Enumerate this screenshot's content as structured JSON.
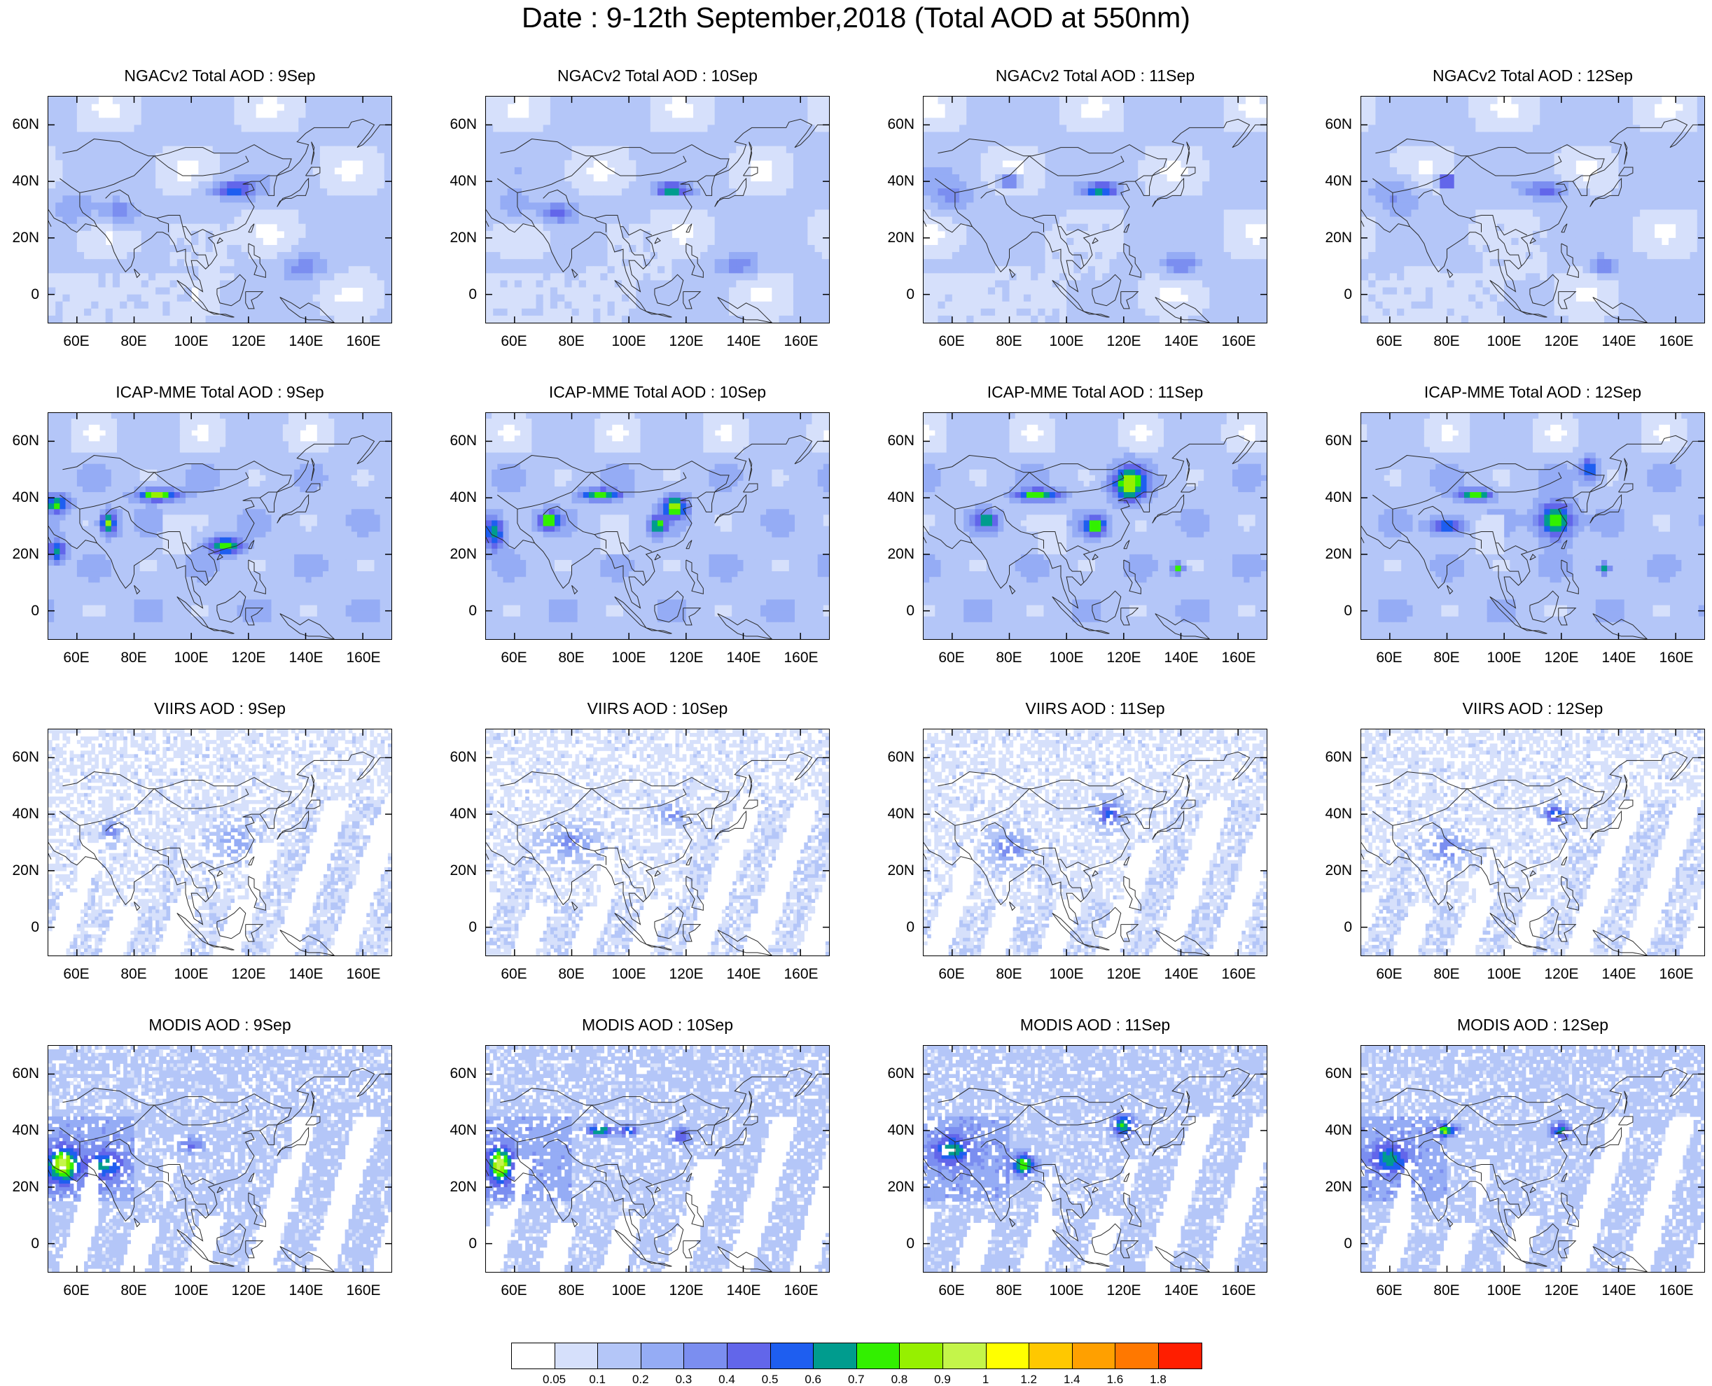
{
  "figure": {
    "title": "Date : 9-12th September,2018 (Total AOD at 550nm)"
  },
  "panels": [
    {
      "row": 0,
      "col": 0,
      "title": "NGACv2 Total AOD : 9Sep",
      "kind": "model-smooth"
    },
    {
      "row": 0,
      "col": 1,
      "title": "NGACv2 Total AOD : 10Sep",
      "kind": "model-smooth"
    },
    {
      "row": 0,
      "col": 2,
      "title": "NGACv2 Total AOD : 11Sep",
      "kind": "model-smooth"
    },
    {
      "row": 0,
      "col": 3,
      "title": "NGACv2 Total AOD : 12Sep",
      "kind": "model-smooth"
    },
    {
      "row": 1,
      "col": 0,
      "title": "ICAP-MME Total AOD : 9Sep",
      "kind": "model-ensemble"
    },
    {
      "row": 1,
      "col": 1,
      "title": "ICAP-MME Total AOD : 10Sep",
      "kind": "model-ensemble"
    },
    {
      "row": 1,
      "col": 2,
      "title": "ICAP-MME Total AOD : 11Sep",
      "kind": "model-ensemble"
    },
    {
      "row": 1,
      "col": 3,
      "title": "ICAP-MME Total AOD : 12Sep",
      "kind": "model-ensemble"
    },
    {
      "row": 2,
      "col": 0,
      "title": "VIIRS AOD : 9Sep",
      "kind": "satellite-sparse"
    },
    {
      "row": 2,
      "col": 1,
      "title": "VIIRS AOD : 10Sep",
      "kind": "satellite-sparse"
    },
    {
      "row": 2,
      "col": 2,
      "title": "VIIRS AOD : 11Sep",
      "kind": "satellite-sparse"
    },
    {
      "row": 2,
      "col": 3,
      "title": "VIIRS AOD : 12Sep",
      "kind": "satellite-sparse"
    },
    {
      "row": 3,
      "col": 0,
      "title": "MODIS AOD : 9Sep",
      "kind": "satellite-swath"
    },
    {
      "row": 3,
      "col": 1,
      "title": "MODIS AOD : 10Sep",
      "kind": "satellite-swath"
    },
    {
      "row": 3,
      "col": 2,
      "title": "MODIS AOD : 11Sep",
      "kind": "satellite-swath"
    },
    {
      "row": 3,
      "col": 3,
      "title": "MODIS AOD : 12Sep",
      "kind": "satellite-swath"
    }
  ],
  "map_axes": {
    "lon_range": [
      50,
      170
    ],
    "lat_range": [
      -10,
      70
    ],
    "lon_ticks": [
      60,
      80,
      100,
      120,
      140,
      160
    ],
    "lon_tick_labels": [
      "60E",
      "80E",
      "100E",
      "120E",
      "140E",
      "160E"
    ],
    "lat_ticks": [
      60,
      40,
      20,
      0
    ],
    "lat_tick_labels": [
      "60N",
      "40N",
      "20N",
      "0"
    ]
  },
  "colorbar": {
    "colors": [
      "#ffffff",
      "#d6e0fb",
      "#b4c6f8",
      "#95acf5",
      "#7b8ef0",
      "#6266ea",
      "#1e5ef0",
      "#009c8e",
      "#32f000",
      "#96f000",
      "#c4f54a",
      "#ffff00",
      "#ffc800",
      "#ffa000",
      "#ff7800",
      "#ff1e00"
    ],
    "boundary_labels": [
      "0.05",
      "0.1",
      "0.2",
      "0.3",
      "0.4",
      "0.5",
      "0.6",
      "0.7",
      "0.8",
      "0.9",
      "1",
      "1.2",
      "1.4",
      "1.6",
      "1.8"
    ]
  }
}
